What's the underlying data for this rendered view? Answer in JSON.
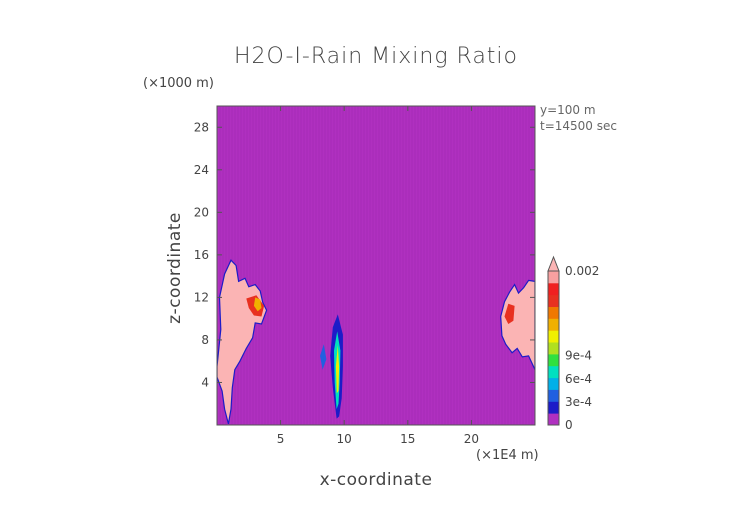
{
  "chart_data": {
    "type": "heatmap",
    "title": "H2O-I-Rain Mixing Ratio",
    "xlabel": "x-coordinate",
    "ylabel": "z-coordinate",
    "x_unit": "(×1E4 m)",
    "y_unit": "(×1000 m)",
    "x_ticks": [
      5,
      10,
      15,
      20
    ],
    "y_ticks": [
      4,
      8,
      12,
      16,
      20,
      24,
      28
    ],
    "xlim": [
      0,
      25
    ],
    "ylim": [
      0,
      30
    ],
    "annotations": [
      "y=100 m",
      "t=14500 sec"
    ],
    "colorbar": {
      "tick_labels": [
        "0.002",
        "9e-4",
        "6e-4",
        "3e-4",
        "0"
      ],
      "tick_values": [
        0.002,
        0.0009,
        0.0006,
        0.0003,
        0
      ],
      "colors": [
        "#b030c0",
        "#1c1cc8",
        "#2060e0",
        "#00b0e8",
        "#00e0c0",
        "#30e040",
        "#b0e020",
        "#f0f000",
        "#f0b000",
        "#f07800",
        "#e83020",
        "#f02020",
        "#f8a0a0"
      ],
      "background_color": "#b030c0",
      "max_color": "#fbb4b4"
    },
    "features": [
      {
        "name": "left cloud",
        "x_range": [
          0,
          4
        ],
        "z_range": [
          0,
          15.5
        ],
        "max_value": 0.002
      },
      {
        "name": "center cloud",
        "x_range": [
          8,
          10
        ],
        "z_range": [
          0.5,
          10.5
        ],
        "max_value": 0.0006
      },
      {
        "name": "right cloud",
        "x_range": [
          22,
          25
        ],
        "z_range": [
          5,
          13.5
        ],
        "max_value": 0.002
      }
    ]
  }
}
